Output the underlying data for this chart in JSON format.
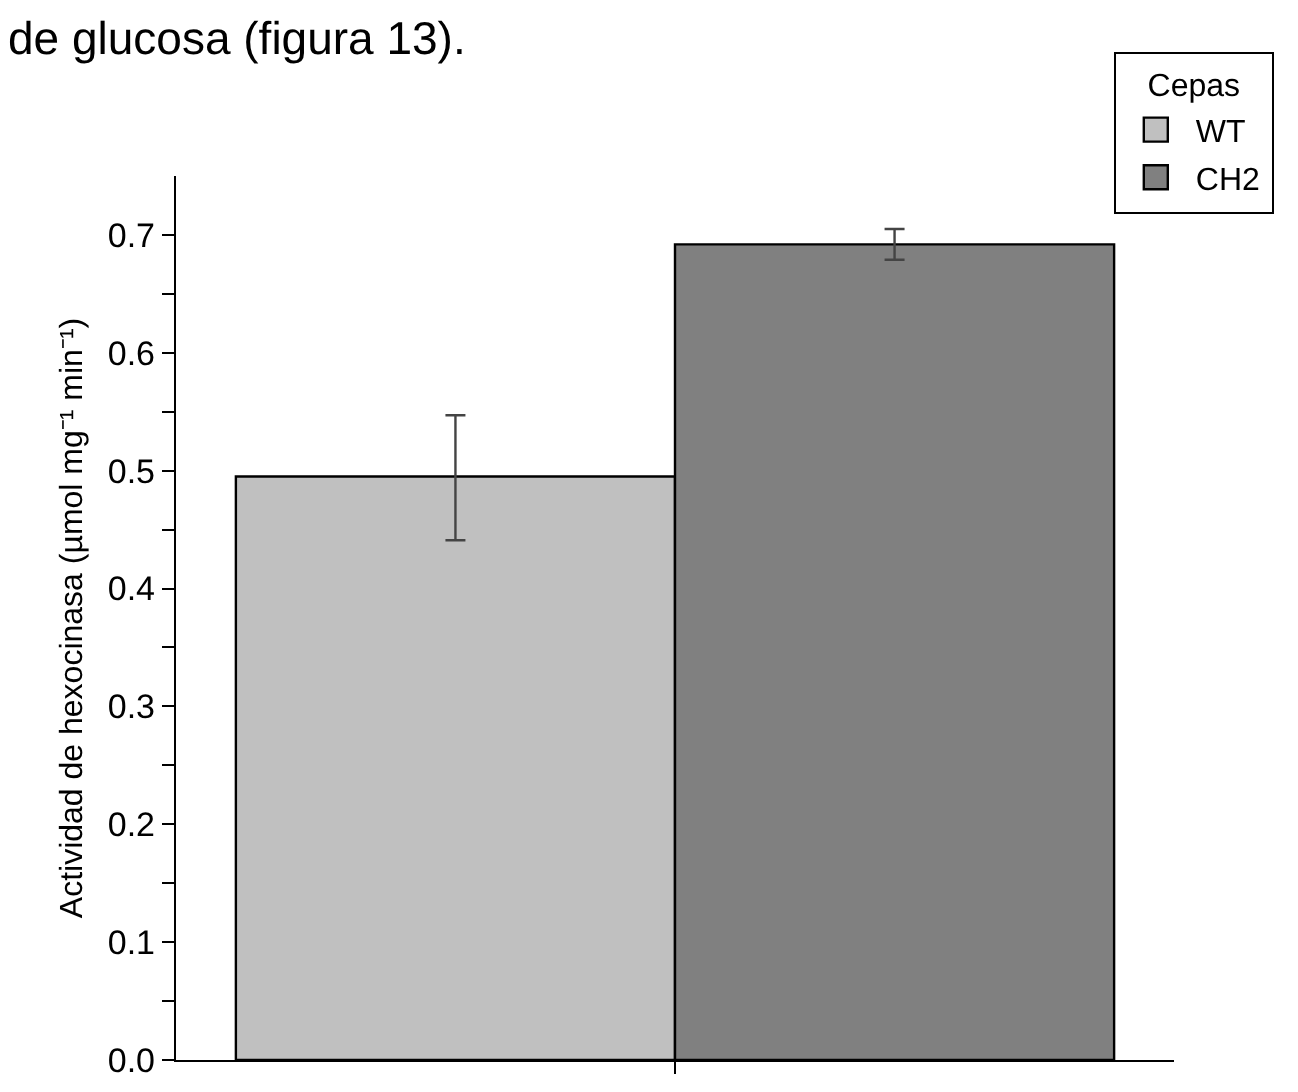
{
  "chart_data": {
    "type": "bar",
    "ylabel": "Actividad de hexocinasa (µmol mg⁻¹ min⁻¹)",
    "legend_title": "Cepas",
    "annotations": [
      "de glucosa (figura 13)."
    ],
    "categories": [
      null
    ],
    "series": [
      {
        "name": "WT",
        "color": "#c0c0c0",
        "values": [
          0.495
        ],
        "errors": [
          [
            0.441,
            0.547
          ]
        ]
      },
      {
        "name": "CH2",
        "color": "#808080",
        "values": [
          0.692
        ],
        "errors": [
          [
            0.679,
            0.705
          ]
        ]
      }
    ],
    "ylim": [
      0,
      0.75
    ],
    "yticks": [
      {
        "value": 0,
        "label": "0.0"
      },
      {
        "value": 0.05,
        "label": null
      },
      0.1,
      {
        "value": 0.15,
        "label": null
      },
      0.2,
      {
        "value": 0.25,
        "label": null
      },
      0.3,
      {
        "value": 0.35,
        "label": null
      },
      0.4,
      {
        "value": 0.45,
        "label": null
      },
      0.5,
      {
        "value": 0.55,
        "label": null
      },
      0.6,
      {
        "value": 0.65,
        "label": null
      },
      0.7
    ],
    "grid": false,
    "legend": "top right"
  }
}
